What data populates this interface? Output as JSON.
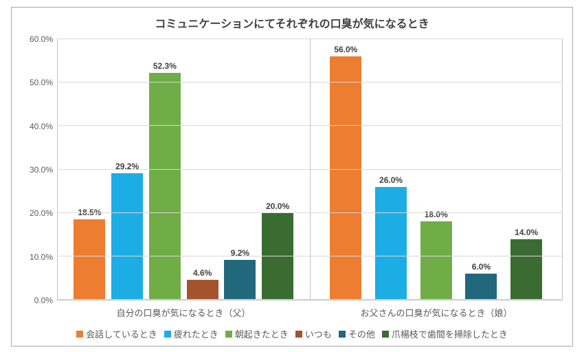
{
  "title": "コミュニケーションにてそれぞれの口臭が気になるとき",
  "y_axis": {
    "min": 0,
    "max": 60,
    "step": 10,
    "format_suffix": ".0%",
    "label_color": "#595959",
    "grid_color": "#d9d9d9"
  },
  "series": [
    {
      "name": "会話しているとき",
      "color": "#ed7d31"
    },
    {
      "name": "疲れたとき",
      "color": "#1cade4"
    },
    {
      "name": "朝起きたとき",
      "color": "#70ad47"
    },
    {
      "name": "いつも",
      "color": "#a5532c"
    },
    {
      "name": "その他",
      "color": "#22687c"
    },
    {
      "name": "爪楊枝で歯間を掃除したとき",
      "color": "#3a6b31"
    }
  ],
  "groups": [
    {
      "label": "自分の口臭が気になるとき（父）",
      "values": [
        18.5,
        29.2,
        52.3,
        4.6,
        9.2,
        20.0
      ],
      "display": [
        "18.5%",
        "29.2%",
        "52.3%",
        "4.6%",
        "9.2%",
        "20.0%"
      ]
    },
    {
      "label": "お父さんの口臭が気になるとき（娘）",
      "values": [
        56.0,
        26.0,
        18.0,
        null,
        6.0,
        14.0
      ],
      "display": [
        "56.0%",
        "26.0%",
        "18.0%",
        null,
        "6.0%",
        "14.0%"
      ]
    }
  ],
  "frame_border_color": "#a9a9a9",
  "background_color": "#ffffff",
  "title_fontsize": 16,
  "label_fontsize": 12
}
